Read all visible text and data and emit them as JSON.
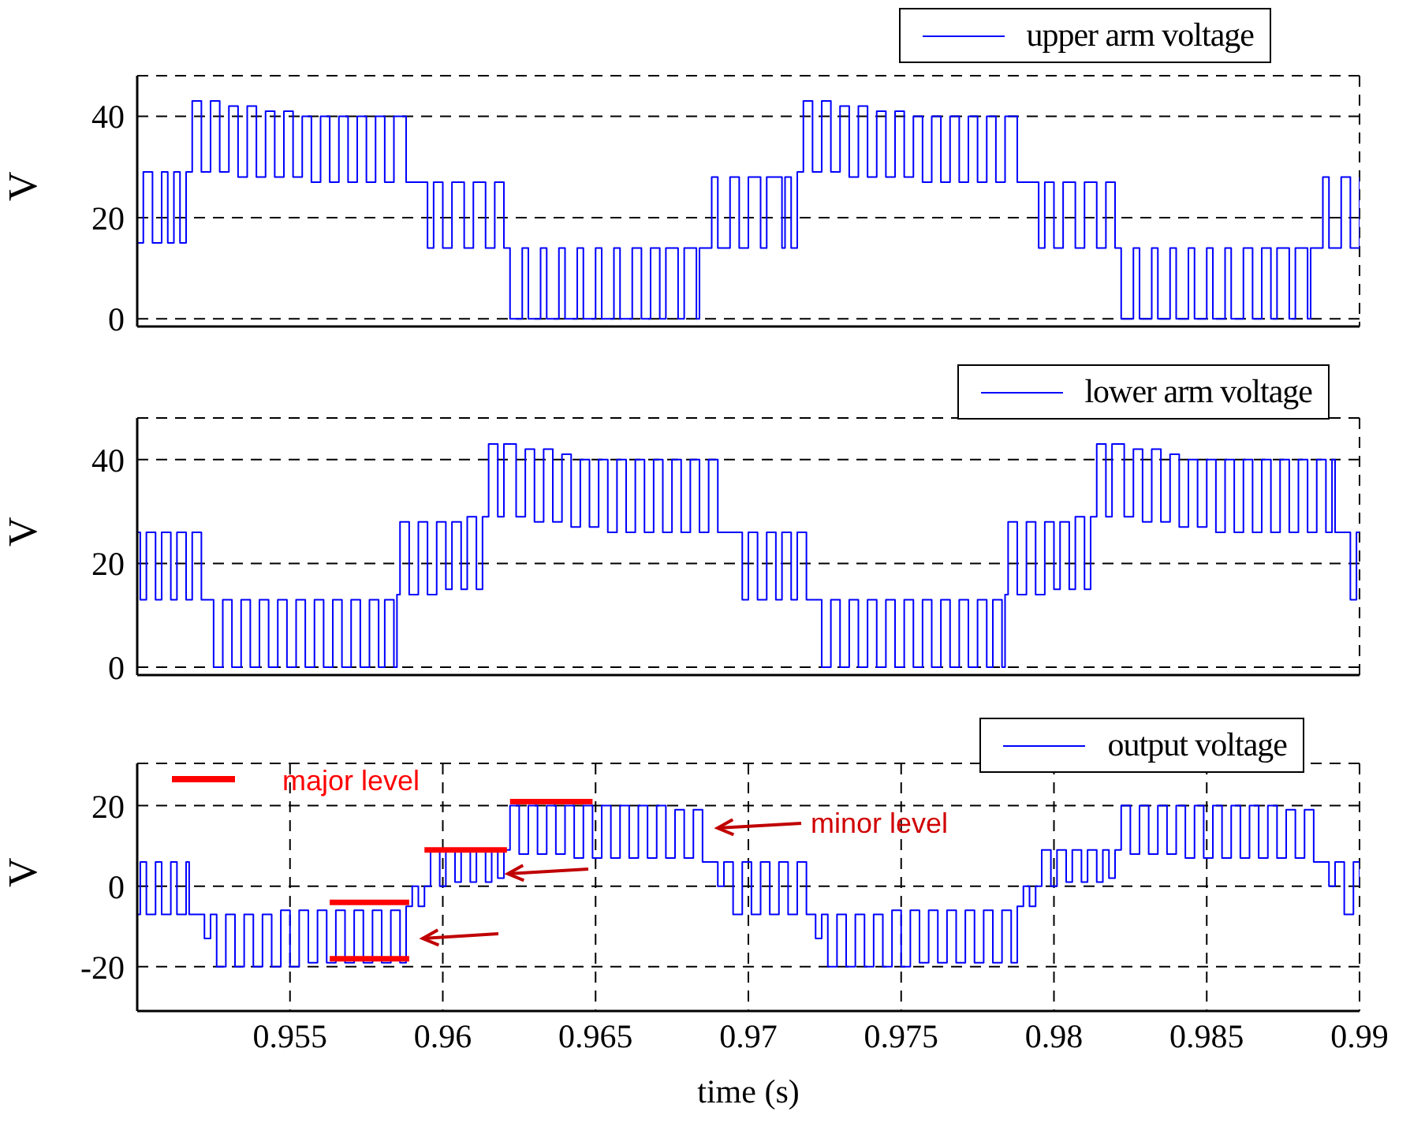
{
  "chart_data": [
    {
      "type": "step",
      "ylabel": "V",
      "xlim": [
        0.95,
        0.99
      ],
      "xticks": [
        0.955,
        0.96,
        0.965,
        0.97,
        0.975,
        0.98,
        0.985,
        0.99
      ],
      "ylim": [
        -1.5,
        48
      ],
      "yticks": [
        0,
        20,
        40
      ],
      "grid": true,
      "legend": "top right",
      "tick_labels": "y",
      "series": [
        {
          "name": "upper arm voltage",
          "color": "#0000ff",
          "x": [
            0.95,
            0.9502,
            0.9505,
            0.9508,
            0.951,
            0.9512,
            0.9514,
            0.9516,
            0.9518,
            0.9521,
            0.9524,
            0.9527,
            0.953,
            0.9533,
            0.9536,
            0.9539,
            0.9542,
            0.9545,
            0.9548,
            0.9551,
            0.9554,
            0.9557,
            0.956,
            0.9563,
            0.9566,
            0.9569,
            0.9572,
            0.9575,
            0.9578,
            0.9581,
            0.9584,
            0.9588,
            0.9595,
            0.9597,
            0.96,
            0.9603,
            0.9607,
            0.961,
            0.9614,
            0.9617,
            0.962,
            0.9622,
            0.9626,
            0.9628,
            0.9632,
            0.9634,
            0.9638,
            0.964,
            0.9644,
            0.9646,
            0.965,
            0.9652,
            0.9656,
            0.9658,
            0.9662,
            0.9665,
            0.9668,
            0.9671,
            0.9673,
            0.9677,
            0.9679,
            0.9683,
            0.9684,
            0.9688,
            0.969,
            0.9694,
            0.9697,
            0.97,
            0.9704,
            0.9706,
            0.9711,
            0.9712,
            0.9714,
            0.9716,
            0.9718,
            0.9721,
            0.9724,
            0.9727,
            0.973,
            0.9733,
            0.9736,
            0.9739,
            0.9742,
            0.9745,
            0.9748,
            0.9751,
            0.9754,
            0.9757,
            0.976,
            0.9763,
            0.9766,
            0.9769,
            0.9772,
            0.9775,
            0.9778,
            0.9781,
            0.9784,
            0.9788,
            0.9795,
            0.9797,
            0.98,
            0.9803,
            0.9807,
            0.981,
            0.9814,
            0.9817,
            0.982,
            0.9822,
            0.9826,
            0.9828,
            0.9832,
            0.9834,
            0.9838,
            0.984,
            0.9844,
            0.9846,
            0.985,
            0.9852,
            0.9856,
            0.9858,
            0.9862,
            0.9865,
            0.9868,
            0.9871,
            0.9873,
            0.9877,
            0.9879,
            0.9883,
            0.9884,
            0.9888,
            0.989,
            0.9894,
            0.9897,
            0.99
          ],
          "values": [
            15,
            29,
            15,
            29,
            15,
            29,
            15,
            29,
            43,
            29,
            43,
            29,
            42,
            28,
            42,
            28,
            41,
            28,
            41,
            28,
            40,
            27,
            40,
            27,
            40,
            27,
            40,
            27,
            40,
            27,
            40,
            27,
            14,
            27,
            14,
            27,
            14,
            27,
            14,
            27,
            14,
            0,
            14,
            0,
            14,
            0,
            14,
            0,
            14,
            0,
            14,
            0,
            14,
            0,
            14,
            0,
            14,
            0,
            14,
            0,
            14,
            0,
            14,
            28,
            14,
            28,
            14,
            28,
            14,
            28,
            14,
            28,
            14,
            29,
            43,
            29,
            43,
            29,
            42,
            28,
            42,
            28,
            41,
            28,
            41,
            28,
            40,
            27,
            40,
            27,
            40,
            27,
            40,
            27,
            40,
            27,
            40,
            27,
            14,
            27,
            14,
            27,
            14,
            27,
            14,
            27,
            14,
            0,
            14,
            0,
            14,
            0,
            14,
            0,
            14,
            0,
            14,
            0,
            14,
            0,
            14,
            0,
            14,
            0,
            14,
            0,
            14,
            0,
            14,
            28,
            14,
            28,
            14,
            28
          ]
        }
      ]
    },
    {
      "type": "step",
      "ylabel": "V",
      "xlim": [
        0.95,
        0.99
      ],
      "xticks": [
        0.955,
        0.96,
        0.965,
        0.97,
        0.975,
        0.98,
        0.985,
        0.99
      ],
      "ylim": [
        -1.5,
        48
      ],
      "yticks": [
        0,
        20,
        40
      ],
      "grid": true,
      "legend": "top right",
      "tick_labels": "y",
      "series": [
        {
          "name": "lower arm voltage",
          "color": "#0000ff",
          "x": [
            0.95,
            0.9501,
            0.9503,
            0.9506,
            0.9508,
            0.9511,
            0.9513,
            0.9516,
            0.9518,
            0.9521,
            0.9525,
            0.9528,
            0.9531,
            0.9534,
            0.9537,
            0.954,
            0.9543,
            0.9546,
            0.9549,
            0.9552,
            0.9555,
            0.9558,
            0.9561,
            0.9564,
            0.9567,
            0.957,
            0.9573,
            0.9576,
            0.9579,
            0.9581,
            0.9584,
            0.9585,
            0.9586,
            0.9589,
            0.9592,
            0.9595,
            0.9598,
            0.9601,
            0.9603,
            0.9606,
            0.9608,
            0.9611,
            0.9613,
            0.9615,
            0.9618,
            0.962,
            0.9624,
            0.9627,
            0.963,
            0.9633,
            0.9636,
            0.9639,
            0.9642,
            0.9645,
            0.9648,
            0.9651,
            0.9654,
            0.9657,
            0.966,
            0.9663,
            0.9666,
            0.9669,
            0.9672,
            0.9675,
            0.9678,
            0.9681,
            0.9684,
            0.9687,
            0.969,
            0.9698,
            0.97,
            0.9703,
            0.9706,
            0.9709,
            0.9711,
            0.9714,
            0.9716,
            0.9719,
            0.9724,
            0.9727,
            0.973,
            0.9733,
            0.9736,
            0.9739,
            0.9742,
            0.9745,
            0.9748,
            0.9751,
            0.9754,
            0.9757,
            0.976,
            0.9763,
            0.9766,
            0.9769,
            0.9772,
            0.9775,
            0.9778,
            0.978,
            0.9783,
            0.9784,
            0.9785,
            0.9788,
            0.9791,
            0.9794,
            0.9797,
            0.98,
            0.9802,
            0.9805,
            0.9807,
            0.981,
            0.9812,
            0.9814,
            0.9817,
            0.9819,
            0.9823,
            0.9826,
            0.9829,
            0.9832,
            0.9835,
            0.9838,
            0.9841,
            0.9844,
            0.9847,
            0.985,
            0.9853,
            0.9856,
            0.9859,
            0.9862,
            0.9865,
            0.9868,
            0.9871,
            0.9874,
            0.9877,
            0.988,
            0.9883,
            0.9886,
            0.9889,
            0.9891,
            0.9892,
            0.9897,
            0.9899,
            0.99
          ],
          "values": [
            26,
            13,
            26,
            13,
            26,
            13,
            26,
            13,
            26,
            13,
            0,
            13,
            0,
            13,
            0,
            13,
            0,
            13,
            0,
            13,
            0,
            13,
            0,
            13,
            0,
            13,
            0,
            13,
            0,
            13,
            0,
            14,
            28,
            14,
            28,
            14,
            28,
            15,
            28,
            15,
            29,
            15,
            29,
            43,
            29,
            43,
            29,
            42,
            28,
            42,
            28,
            41,
            27,
            40,
            27,
            40,
            26,
            40,
            26,
            40,
            26,
            40,
            26,
            40,
            26,
            40,
            26,
            40,
            26,
            13,
            26,
            13,
            26,
            13,
            26,
            13,
            26,
            13,
            0,
            13,
            0,
            13,
            0,
            13,
            0,
            13,
            0,
            13,
            0,
            13,
            0,
            13,
            0,
            13,
            0,
            13,
            0,
            13,
            0,
            14,
            28,
            14,
            28,
            14,
            28,
            15,
            28,
            15,
            29,
            15,
            29,
            43,
            29,
            43,
            29,
            42,
            28,
            42,
            28,
            41,
            27,
            40,
            27,
            40,
            26,
            40,
            26,
            40,
            26,
            40,
            26,
            40,
            26,
            40,
            26,
            40,
            26,
            40,
            26,
            13,
            26,
            26
          ]
        }
      ]
    },
    {
      "type": "step",
      "ylabel": "V",
      "xlabel": "time (s)",
      "xlim": [
        0.95,
        0.99
      ],
      "xticks": [
        0.955,
        0.96,
        0.965,
        0.97,
        0.975,
        0.98,
        0.985,
        0.99
      ],
      "ylim": [
        -31,
        30.5
      ],
      "yticks": [
        -20,
        0,
        20
      ],
      "grid": true,
      "legend": "top right",
      "annotations": [
        "minor level"
      ],
      "series": [
        {
          "name": "output voltage",
          "color": "#0000ff",
          "x": [
            0.95,
            0.9501,
            0.9503,
            0.9506,
            0.9508,
            0.9511,
            0.9513,
            0.9516,
            0.9517,
            0.9522,
            0.9524,
            0.9526,
            0.9529,
            0.9532,
            0.9535,
            0.9538,
            0.9541,
            0.9544,
            0.9547,
            0.955,
            0.9553,
            0.9556,
            0.9559,
            0.9562,
            0.9565,
            0.9568,
            0.9571,
            0.9574,
            0.9577,
            0.958,
            0.9583,
            0.9586,
            0.9588,
            0.959,
            0.9592,
            0.9594,
            0.9596,
            0.9599,
            0.9601,
            0.9604,
            0.9606,
            0.9609,
            0.9611,
            0.9614,
            0.9616,
            0.9618,
            0.962,
            0.9622,
            0.9625,
            0.9628,
            0.9631,
            0.9634,
            0.9637,
            0.964,
            0.9643,
            0.9646,
            0.9649,
            0.9652,
            0.9655,
            0.9658,
            0.9661,
            0.9664,
            0.9667,
            0.967,
            0.9673,
            0.9676,
            0.9679,
            0.9682,
            0.9685,
            0.969,
            0.9692,
            0.9695,
            0.9698,
            0.9701,
            0.9704,
            0.9707,
            0.971,
            0.9713,
            0.9716,
            0.9719,
            0.9722,
            0.9724,
            0.9726,
            0.9729,
            0.9732,
            0.9735,
            0.9738,
            0.9741,
            0.9744,
            0.9747,
            0.975,
            0.9753,
            0.9756,
            0.9759,
            0.9762,
            0.9765,
            0.9768,
            0.9771,
            0.9774,
            0.9777,
            0.978,
            0.9783,
            0.9786,
            0.9788,
            0.979,
            0.9792,
            0.9794,
            0.9796,
            0.9799,
            0.9801,
            0.9804,
            0.9806,
            0.9809,
            0.9811,
            0.9814,
            0.9816,
            0.9818,
            0.982,
            0.9822,
            0.9825,
            0.9828,
            0.9831,
            0.9834,
            0.9837,
            0.984,
            0.9843,
            0.9846,
            0.9849,
            0.9852,
            0.9855,
            0.9858,
            0.9861,
            0.9864,
            0.9867,
            0.987,
            0.9873,
            0.9876,
            0.9879,
            0.9882,
            0.9885,
            0.989,
            0.9892,
            0.9895,
            0.9898,
            0.99
          ],
          "values": [
            -7,
            6,
            -7,
            6,
            -7,
            6,
            -7,
            6,
            -7,
            -13,
            -7,
            -20,
            -7,
            -20,
            -7,
            -20,
            -7,
            -20,
            -6,
            -20,
            -6,
            -19,
            -6,
            -19,
            -6,
            -19,
            -6,
            -19,
            -6,
            -19,
            -6,
            -19,
            -5,
            0,
            -5,
            0,
            9,
            0,
            9,
            1,
            9,
            1,
            9,
            1,
            9,
            2,
            9,
            20,
            8,
            20,
            8,
            20,
            8,
            20,
            7,
            20,
            7,
            20,
            7,
            20,
            7,
            20,
            7,
            20,
            7,
            19,
            7,
            19,
            6,
            0,
            6,
            -7,
            6,
            -7,
            6,
            -7,
            6,
            -7,
            6,
            -7,
            -13,
            -7,
            -20,
            -7,
            -20,
            -7,
            -20,
            -7,
            -20,
            -6,
            -20,
            -6,
            -19,
            -6,
            -19,
            -6,
            -19,
            -6,
            -19,
            -6,
            -19,
            -6,
            -19,
            -5,
            0,
            -5,
            0,
            9,
            0,
            9,
            1,
            9,
            1,
            9,
            1,
            9,
            2,
            9,
            20,
            8,
            20,
            8,
            20,
            8,
            20,
            7,
            20,
            7,
            20,
            7,
            20,
            7,
            20,
            7,
            20,
            7,
            19,
            7,
            19,
            6,
            0,
            6,
            -7,
            6,
            0
          ]
        },
        {
          "name": "major level",
          "type": "line",
          "color": "#ff0000",
          "x": [
            0.9563,
            0.9589
          ],
          "values": [
            -4,
            -4
          ]
        },
        {
          "type": "line",
          "color": "#ff0000",
          "x": [
            0.9563,
            0.9589
          ],
          "values": [
            -18,
            -18
          ]
        },
        {
          "type": "line",
          "color": "#ff0000",
          "x": [
            0.9594,
            0.9621
          ],
          "values": [
            9,
            9
          ]
        },
        {
          "type": "line",
          "color": "#ff0000",
          "x": [
            0.9622,
            0.9649
          ],
          "values": [
            21,
            21
          ]
        }
      ]
    }
  ]
}
